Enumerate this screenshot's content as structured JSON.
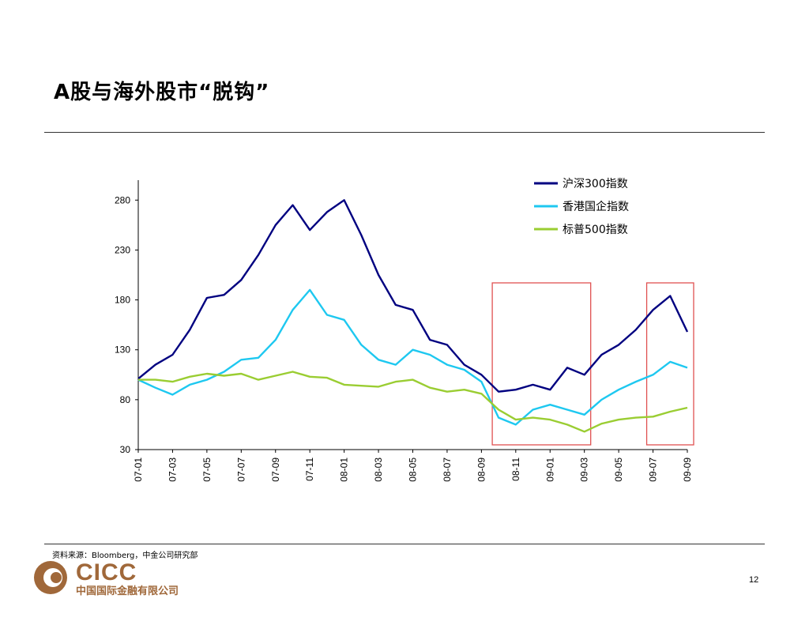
{
  "title": "A股与海外股市“脱钩”",
  "source": "资料来源：Bloomberg，中金公司研究部",
  "footer": {
    "logo_text": "CICC",
    "logo_sub": "中国国际金融有限公司",
    "page_number": "12"
  },
  "colors": {
    "csi300": "#000080",
    "hscei": "#1ec8f0",
    "sp500": "#9acd32",
    "highlight_box": "#e05050"
  },
  "chart_data": {
    "type": "line",
    "title": "",
    "xlabel": "",
    "ylabel": "",
    "ylim": [
      30,
      300
    ],
    "yticks": [
      30,
      80,
      130,
      180,
      230,
      280
    ],
    "x_ticks": [
      "07-01",
      "07-03",
      "07-05",
      "07-07",
      "07-09",
      "07-11",
      "08-01",
      "08-03",
      "08-05",
      "08-07",
      "08-09",
      "08-11",
      "09-01",
      "09-03",
      "09-05",
      "09-07",
      "09-09"
    ],
    "legend_position": "top-right",
    "series": [
      {
        "name": "沪深300指数",
        "color": "#000080",
        "points": [
          [
            "2007-01",
            101
          ],
          [
            "2007-02",
            115
          ],
          [
            "2007-03",
            125
          ],
          [
            "2007-04",
            150
          ],
          [
            "2007-05",
            182
          ],
          [
            "2007-06",
            185
          ],
          [
            "2007-07",
            200
          ],
          [
            "2007-08",
            225
          ],
          [
            "2007-09",
            255
          ],
          [
            "2007-10",
            275
          ],
          [
            "2007-11",
            250
          ],
          [
            "2007-12",
            268
          ],
          [
            "2008-01",
            280
          ],
          [
            "2008-02",
            245
          ],
          [
            "2008-03",
            205
          ],
          [
            "2008-04",
            175
          ],
          [
            "2008-05",
            170
          ],
          [
            "2008-06",
            140
          ],
          [
            "2008-07",
            135
          ],
          [
            "2008-08",
            115
          ],
          [
            "2008-09",
            105
          ],
          [
            "2008-10",
            88
          ],
          [
            "2008-11",
            90
          ],
          [
            "2008-12",
            95
          ],
          [
            "2009-01",
            90
          ],
          [
            "2009-02",
            112
          ],
          [
            "2009-03",
            105
          ],
          [
            "2009-04",
            125
          ],
          [
            "2009-05",
            135
          ],
          [
            "2009-06",
            150
          ],
          [
            "2009-07",
            170
          ],
          [
            "2009-08",
            184
          ],
          [
            "2009-09",
            148
          ]
        ]
      },
      {
        "name": "香港国企指数",
        "color": "#1ec8f0",
        "points": [
          [
            "2007-01",
            100
          ],
          [
            "2007-02",
            92
          ],
          [
            "2007-03",
            85
          ],
          [
            "2007-04",
            95
          ],
          [
            "2007-05",
            100
          ],
          [
            "2007-06",
            108
          ],
          [
            "2007-07",
            120
          ],
          [
            "2007-08",
            122
          ],
          [
            "2007-09",
            140
          ],
          [
            "2007-10",
            170
          ],
          [
            "2007-11",
            190
          ],
          [
            "2007-12",
            165
          ],
          [
            "2008-01",
            160
          ],
          [
            "2008-02",
            135
          ],
          [
            "2008-03",
            120
          ],
          [
            "2008-04",
            115
          ],
          [
            "2008-05",
            130
          ],
          [
            "2008-06",
            125
          ],
          [
            "2008-07",
            115
          ],
          [
            "2008-08",
            110
          ],
          [
            "2008-09",
            98
          ],
          [
            "2008-10",
            62
          ],
          [
            "2008-11",
            55
          ],
          [
            "2008-12",
            70
          ],
          [
            "2009-01",
            75
          ],
          [
            "2009-02",
            70
          ],
          [
            "2009-03",
            65
          ],
          [
            "2009-04",
            80
          ],
          [
            "2009-05",
            90
          ],
          [
            "2009-06",
            98
          ],
          [
            "2009-07",
            105
          ],
          [
            "2009-08",
            118
          ],
          [
            "2009-09",
            112
          ]
        ]
      },
      {
        "name": "标普500指数",
        "color": "#9acd32",
        "points": [
          [
            "2007-01",
            100
          ],
          [
            "2007-02",
            100
          ],
          [
            "2007-03",
            98
          ],
          [
            "2007-04",
            103
          ],
          [
            "2007-05",
            106
          ],
          [
            "2007-06",
            104
          ],
          [
            "2007-07",
            106
          ],
          [
            "2007-08",
            100
          ],
          [
            "2007-09",
            104
          ],
          [
            "2007-10",
            108
          ],
          [
            "2007-11",
            103
          ],
          [
            "2007-12",
            102
          ],
          [
            "2008-01",
            95
          ],
          [
            "2008-02",
            94
          ],
          [
            "2008-03",
            93
          ],
          [
            "2008-04",
            98
          ],
          [
            "2008-05",
            100
          ],
          [
            "2008-06",
            92
          ],
          [
            "2008-07",
            88
          ],
          [
            "2008-08",
            90
          ],
          [
            "2008-09",
            86
          ],
          [
            "2008-10",
            70
          ],
          [
            "2008-11",
            60
          ],
          [
            "2008-12",
            62
          ],
          [
            "2009-01",
            60
          ],
          [
            "2009-02",
            55
          ],
          [
            "2009-03",
            48
          ],
          [
            "2009-04",
            56
          ],
          [
            "2009-05",
            60
          ],
          [
            "2009-06",
            62
          ],
          [
            "2009-07",
            63
          ],
          [
            "2009-08",
            68
          ],
          [
            "2009-09",
            72
          ]
        ]
      }
    ],
    "highlight_periods": [
      [
        "2008-10",
        "2009-03"
      ],
      [
        "2009-07",
        "2009-09"
      ]
    ]
  }
}
